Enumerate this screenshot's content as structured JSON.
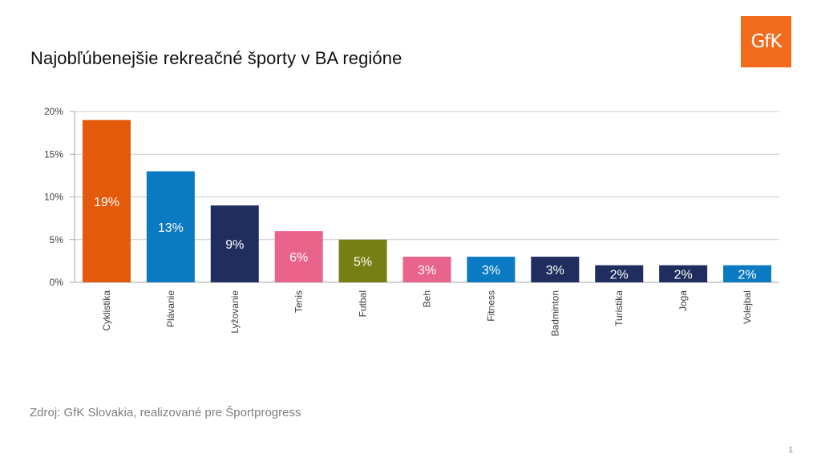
{
  "title": "Najobľúbenejšie rekreačné športy v BA regióne",
  "logo_text": "GfK",
  "logo_color": "#f26b1d",
  "source": "Zdroj: GfK Slovakia, realizované pre Športprogress",
  "page_number": "1",
  "chart_data": {
    "type": "bar",
    "categories": [
      "Cyklistika",
      "Plávanie",
      "Lyžovanie",
      "Tenis",
      "Futbal",
      "Beh",
      "Fitness",
      "Badminton",
      "Turistika",
      "Joga",
      "Volejbal"
    ],
    "values": [
      19,
      13,
      9,
      6,
      5,
      3,
      3,
      3,
      2,
      2,
      2
    ],
    "value_labels": [
      "19%",
      "13%",
      "9%",
      "6%",
      "5%",
      "3%",
      "3%",
      "3%",
      "2%",
      "2%",
      "2%"
    ],
    "colors": [
      "#e35a0a",
      "#0a7ac3",
      "#1f2e5e",
      "#e9648b",
      "#767f12",
      "#e9648b",
      "#0a7ac3",
      "#1f2e5e",
      "#1f2e5e",
      "#1f2e5e",
      "#0a7ac3"
    ],
    "ylim": [
      0,
      20
    ],
    "yticks": [
      0,
      5,
      10,
      15,
      20
    ],
    "ytick_labels": [
      "0%",
      "5%",
      "10%",
      "15%",
      "20%"
    ],
    "grid": true,
    "legend": "none"
  }
}
